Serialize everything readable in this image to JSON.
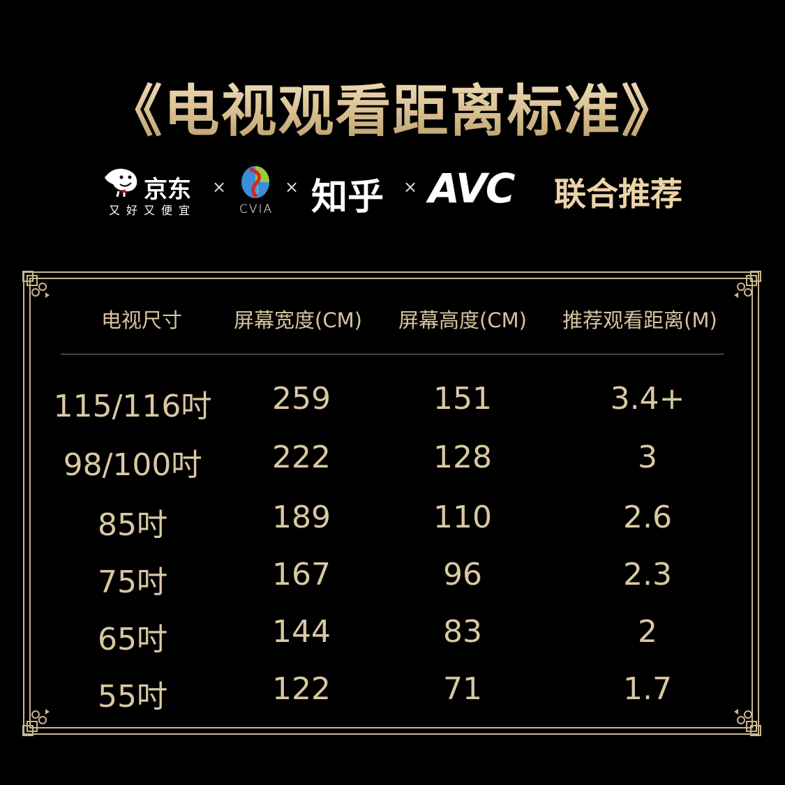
{
  "title": "《电视观看距离标准》",
  "partners": {
    "jd": {
      "name": "京东",
      "slogan": "又好又便宜"
    },
    "cvia": {
      "name": "CVIA"
    },
    "zhihu": {
      "name": "知乎"
    },
    "avc": {
      "name": "AVC"
    },
    "separator": "×",
    "tagline": "联合推荐"
  },
  "colors": {
    "background": "#000000",
    "gold": "#d9c8a2",
    "tagline": "#ecd3a8"
  },
  "table": {
    "headers": [
      "电视尺寸",
      "屏幕宽度(CM)",
      "屏幕高度(CM)",
      "推荐观看距离(M)"
    ],
    "rows": [
      [
        "115/116吋",
        "259",
        "151",
        "3.4+"
      ],
      [
        "98/100吋",
        "222",
        "128",
        "3"
      ],
      [
        "85吋",
        "189",
        "110",
        "2.6"
      ],
      [
        "75吋",
        "167",
        "96",
        "2.3"
      ],
      [
        "65吋",
        "144",
        "83",
        "2"
      ],
      [
        "55吋",
        "122",
        "71",
        "1.7"
      ]
    ]
  }
}
